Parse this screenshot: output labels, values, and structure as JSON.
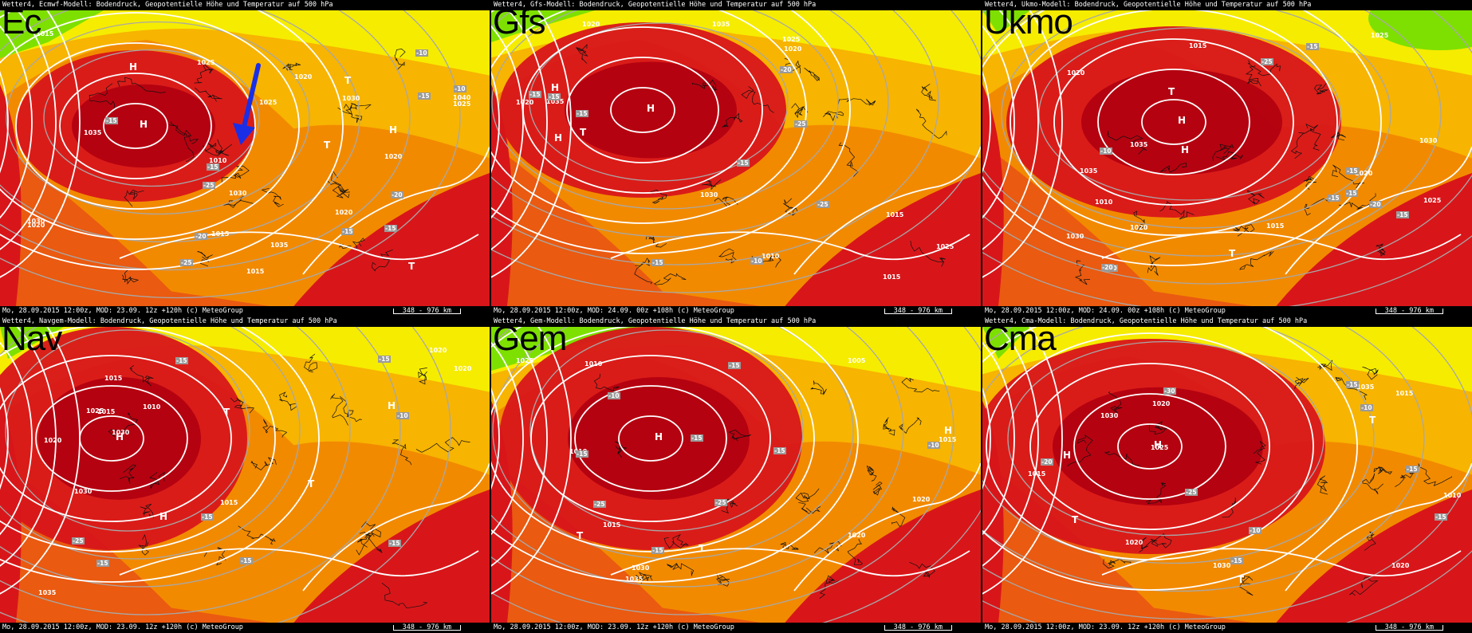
{
  "panels": [
    {
      "model": "Ec",
      "header": "Wetter4, Ecmwf-Modell: Bodendruck, Geopotentielle Höhe und Temperatur auf 500 hPa",
      "footer": "Mo, 28.09.2015 12:00z, MOD: 23.09. 12z +120h (c) MeteoGroup",
      "scale": "348 - 976 km",
      "isobars": [
        "1020",
        "1025",
        "1030",
        "1035",
        "1040",
        "1035",
        "1030",
        "1025",
        "1020",
        "1015",
        "1010",
        "1015",
        "1020",
        "1025",
        "1030",
        "1020",
        "1015"
      ],
      "temps": [
        "-25",
        "-15",
        "-20",
        "-10",
        "-25",
        "-15",
        "-15",
        "-20",
        "-15",
        "-10",
        "-15"
      ],
      "centers": [
        "H",
        "H",
        "H",
        "T",
        "T",
        "T"
      ]
    },
    {
      "model": "Gfs",
      "header": "Wetter4, Gfs-Modell: Bodendruck, Geopotentielle Höhe und Temperatur auf 500 hPa",
      "footer": "Mo, 28.09.2015 12:00z, MOD: 24.09. 00z +108h (c) MeteoGroup",
      "scale": "348 - 976 km",
      "isobars": [
        "1035",
        "1020",
        "1035",
        "1030",
        "1025",
        "1020",
        "1015",
        "1015",
        "1010",
        "1020",
        "1025"
      ],
      "temps": [
        "-25",
        "-15",
        "-20",
        "-25",
        "-15",
        "-15",
        "-15",
        "-15",
        "-10"
      ],
      "centers": [
        "H",
        "H",
        "H",
        "T"
      ]
    },
    {
      "model": "Ukmo",
      "header": "Wetter4, Ukmo-Modell: Bodendruck, Geopotentielle Höhe und Temperatur auf 500 hPa",
      "footer": "Mo, 28.09.2015 12:00z, MOD: 24.09. 00z +108h (c) MeteoGroup",
      "scale": "348 - 976 km",
      "isobars": [
        "1020",
        "1025",
        "1030",
        "1035",
        "1030",
        "1035",
        "1025",
        "1020",
        "1015",
        "1015",
        "1020",
        "1010"
      ],
      "temps": [
        "-25",
        "-20",
        "-15",
        "-20",
        "-15",
        "-15",
        "-20",
        "-15",
        "-10",
        "-15"
      ],
      "centers": [
        "H",
        "H",
        "T",
        "T"
      ]
    },
    {
      "model": "Nav",
      "header": "Wetter4, Navgem-Modell: Bodendruck, Geopotentielle Höhe und Temperatur auf 500 hPa",
      "footer": "Mo, 28.09.2015 12:00z, MOD: 23.09. 12z +120h (c) MeteoGroup",
      "scale": "348 - 976 km",
      "isobars": [
        "1030",
        "1035",
        "1030",
        "1025",
        "1020",
        "1015",
        "1020",
        "1015",
        "1010",
        "1015",
        "1020"
      ],
      "temps": [
        "-15",
        "-10",
        "-15",
        "-25",
        "-15",
        "-15",
        "-15",
        "-15"
      ],
      "centers": [
        "H",
        "H",
        "H",
        "T",
        "T"
      ]
    },
    {
      "model": "Gem",
      "header": "Wetter4, Gem-Modell: Bodendruck, Geopotentielle Höhe und Temperatur auf 500 hPa",
      "footer": "Mo, 28.09.2015 12:00z, MOD: 23.09. 12z +120h (c) MeteoGroup",
      "scale": "348 - 976 km",
      "isobars": [
        "1015",
        "1035",
        "1030",
        "1025",
        "1020",
        "1015",
        "1010",
        "1005",
        "1010",
        "1020"
      ],
      "temps": [
        "-25",
        "-15",
        "-15",
        "-25",
        "-15",
        "-15",
        "-10",
        "-10",
        "-15"
      ],
      "centers": [
        "H",
        "H",
        "T",
        "T"
      ]
    },
    {
      "model": "Cma",
      "header": "Wetter4, Cma-Modell: Bodendruck, Geopotentielle Höhe und Temperatur auf 500 hPa",
      "footer": "Mo, 28.09.2015 12:00z, MOD: 23.09. 12z +120h (c) MeteoGroup",
      "scale": "348 - 976 km",
      "isobars": [
        "1035",
        "1030",
        "1025",
        "1020",
        "1015",
        "1030",
        "1020",
        "1015",
        "1010",
        "1020"
      ],
      "temps": [
        "-30",
        "-15",
        "-25",
        "-20",
        "-15",
        "-15",
        "-10",
        "-15",
        "-10"
      ],
      "centers": [
        "H",
        "H",
        "T",
        "T",
        "T"
      ]
    }
  ],
  "colors": {
    "green": "#7ee000",
    "yellow": "#f6ec00",
    "orange_light": "#f7b400",
    "orange": "#f28a00",
    "red_orange": "#ea5a10",
    "red": "#d8161a",
    "dark_red": "#b00010",
    "arrow": "#1a2ee6"
  }
}
